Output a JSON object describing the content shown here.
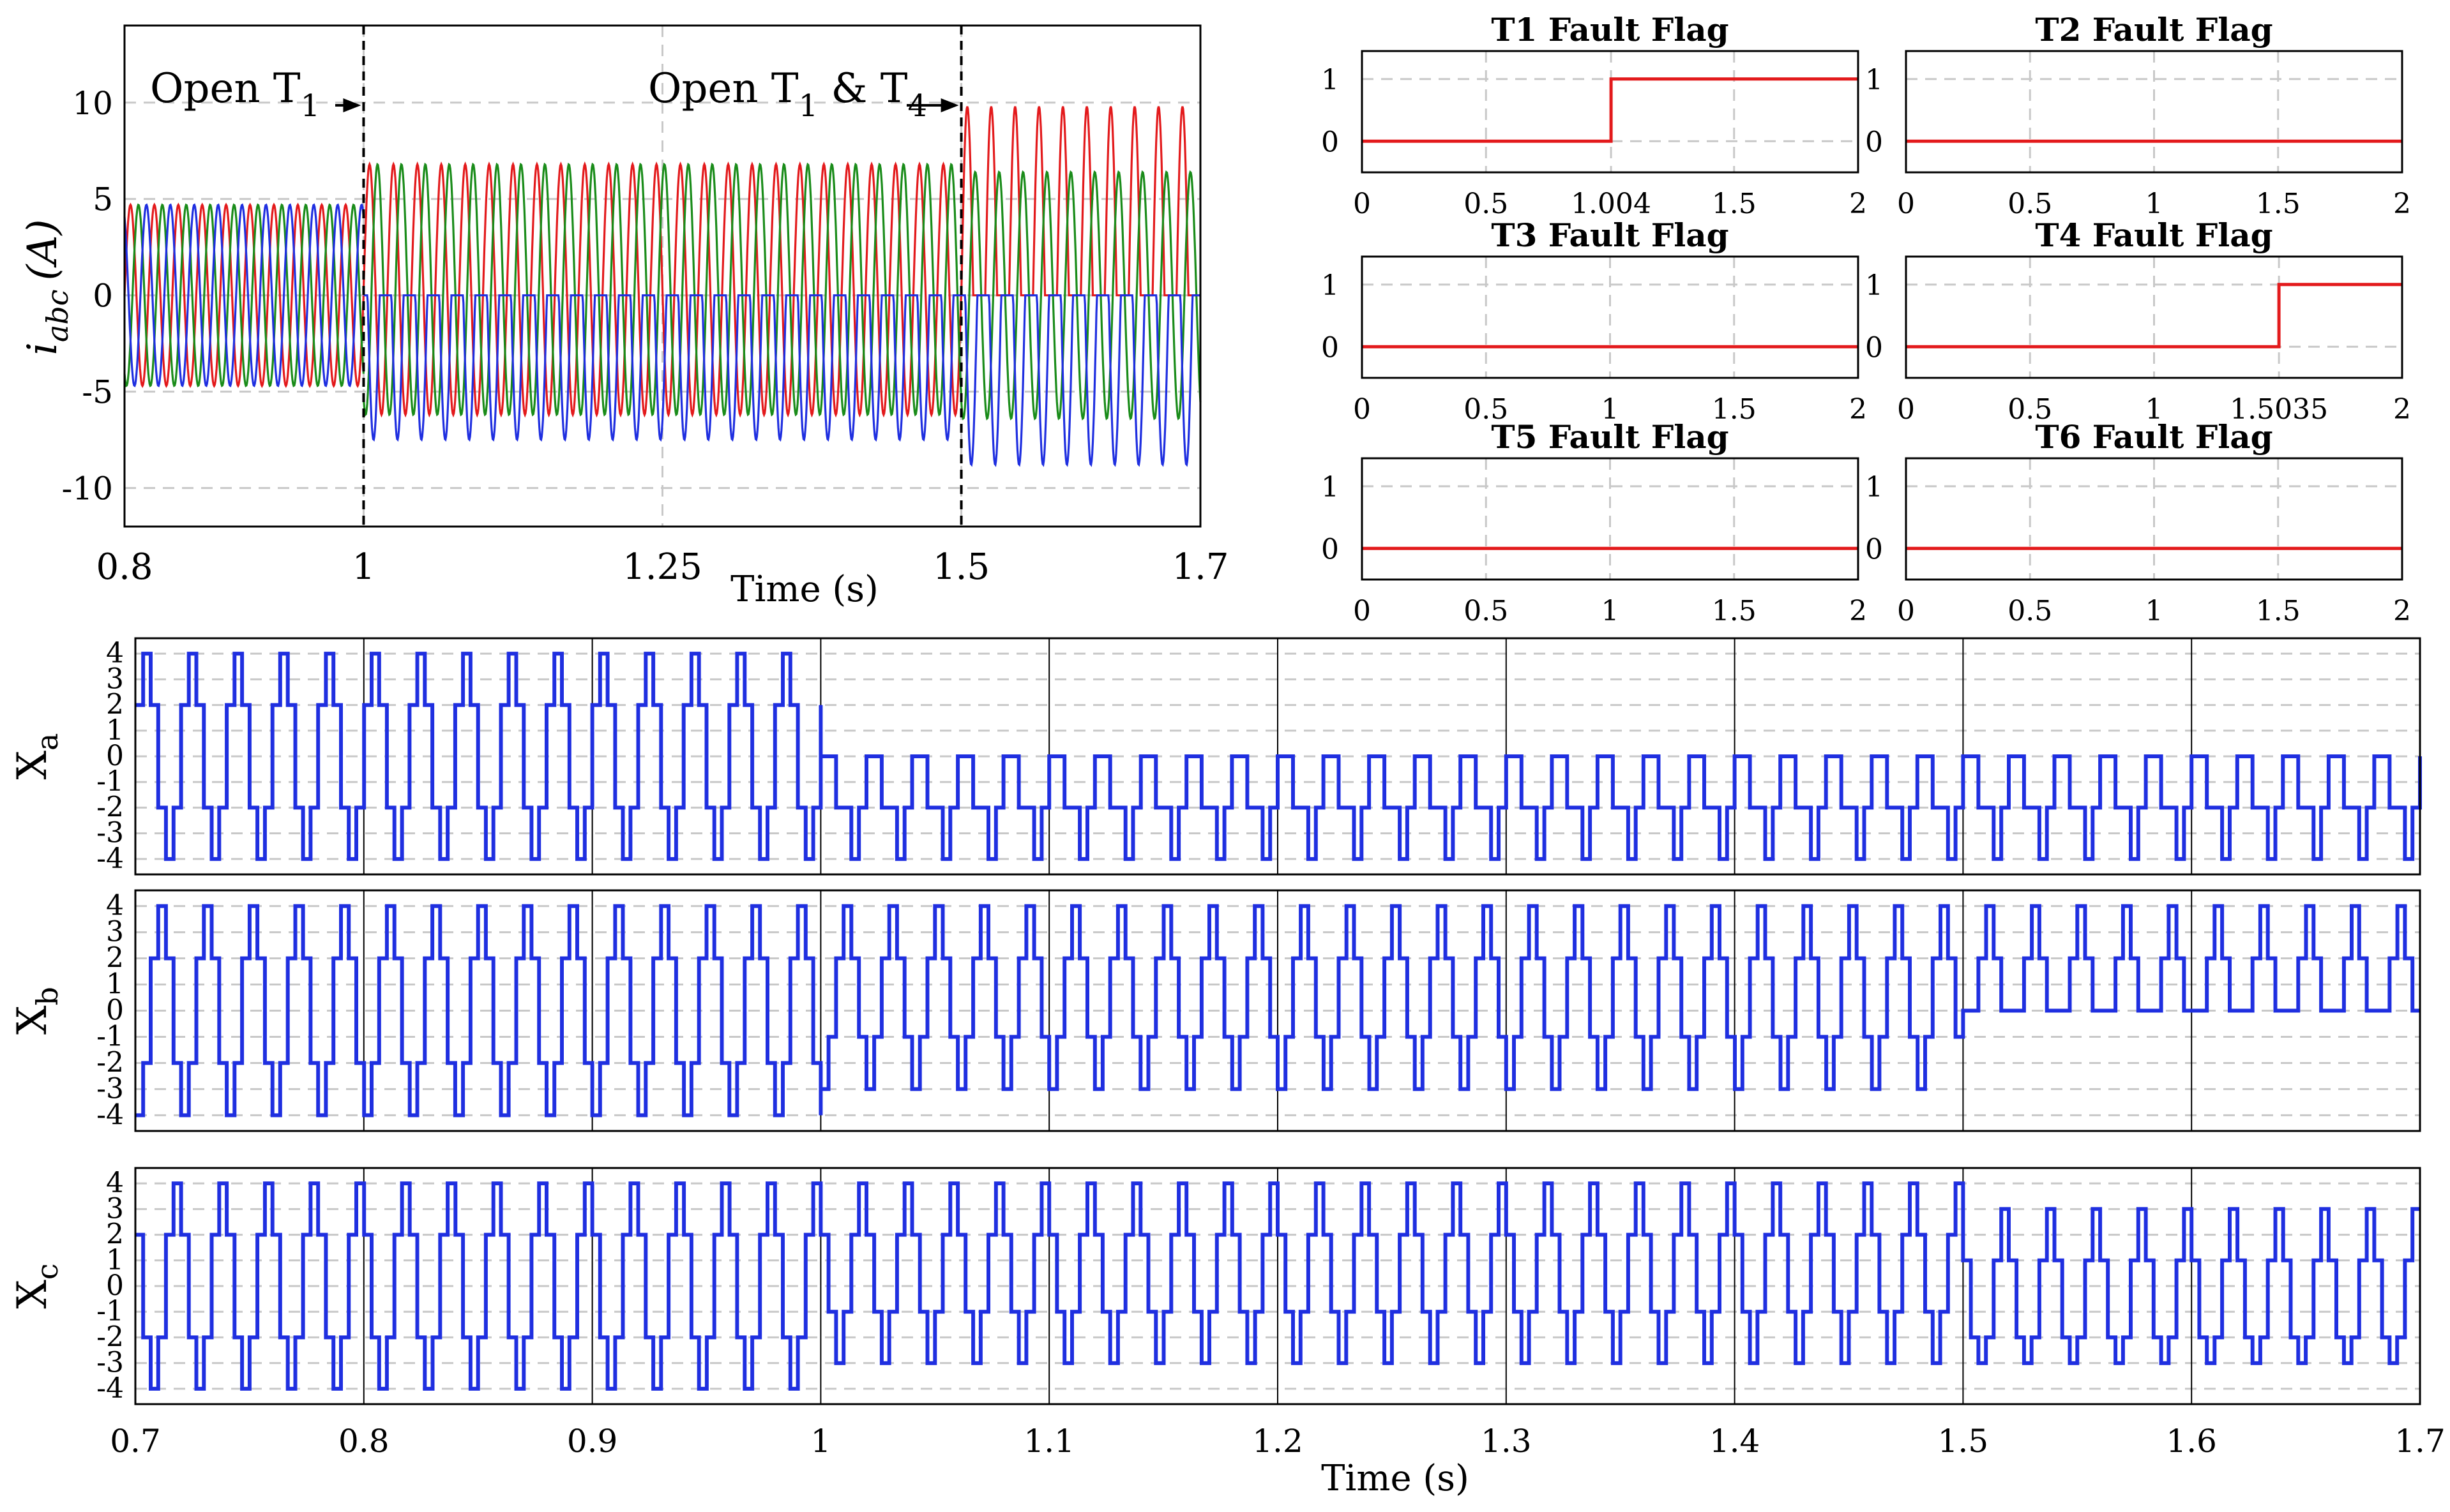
{
  "chart_data": [
    {
      "id": "currents",
      "type": "line",
      "xlabel": "Time (s)",
      "ylabel_main": "i",
      "ylabel_sub": "abc",
      "ylabel_unit": "(A)",
      "xlim": [
        0.8,
        1.7
      ],
      "ylim": [
        -12,
        14
      ],
      "xticks": [
        0.8,
        1.0,
        1.25,
        1.5,
        1.7
      ],
      "xtick_labels": [
        "0.8",
        "1",
        "1.25",
        "1.5",
        "1.7"
      ],
      "yticks": [
        10,
        5,
        0,
        -5,
        -10
      ],
      "ytick_labels": [
        "10",
        "5",
        "0",
        "-5",
        "-10"
      ],
      "grid": true,
      "fault_lines": [
        1.0,
        1.5
      ],
      "annotations": [
        {
          "text": "Open T",
          "sub": "1",
          "suffix": "",
          "x": 1.0
        },
        {
          "text": "Open T",
          "sub": "1",
          "suffix": " & T",
          "sub2": "4",
          "x": 1.5
        }
      ],
      "series": [
        {
          "color": "#e31a1c",
          "phase_deg": 0,
          "segments": [
            {
              "t": [
                0.8,
                1.0
              ],
              "mode": "sine",
              "amp": 4.7
            },
            {
              "t": [
                1.0,
                1.5
              ],
              "mode": "sine",
              "amp": 6.5,
              "offset": 0.3
            },
            {
              "t": [
                1.5,
                1.7
              ],
              "mode": "halfpos",
              "amp": 9.8
            }
          ]
        },
        {
          "color": "#1a8c1a",
          "phase_deg": -120,
          "segments": [
            {
              "t": [
                0.8,
                1.0
              ],
              "mode": "sine",
              "amp": 4.7
            },
            {
              "t": [
                1.0,
                1.5
              ],
              "mode": "sine",
              "amp": 6.5,
              "offset": 0.3
            },
            {
              "t": [
                1.5,
                1.7
              ],
              "mode": "sine",
              "amp": 6.4
            }
          ]
        },
        {
          "color": "#1f2fe0",
          "phase_deg": 120,
          "segments": [
            {
              "t": [
                0.8,
                1.0
              ],
              "mode": "sine",
              "amp": 4.7
            },
            {
              "t": [
                1.0,
                1.5
              ],
              "mode": "halfneg",
              "amp": 7.5
            },
            {
              "t": [
                1.5,
                1.7
              ],
              "mode": "halfneg",
              "amp": 8.8
            }
          ]
        }
      ],
      "frequency_hz": 50
    },
    {
      "id": "fault_flags",
      "type": "line",
      "xlim": [
        0,
        2
      ],
      "ylim": [
        -0.5,
        1.45
      ],
      "yticks": [
        0,
        1
      ],
      "ytick_labels": [
        "0",
        "1"
      ],
      "color": "#e31a1c",
      "panels": [
        {
          "title": "T1 Fault Flag",
          "step_at": 1.004,
          "xticks": [
            0,
            0.5,
            1.004,
            1.5,
            2
          ],
          "xtick_labels": [
            "0",
            "0.5",
            "1.004",
            "1.5",
            "2"
          ]
        },
        {
          "title": "T2 Fault Flag",
          "step_at": null,
          "xticks": [
            0,
            0.5,
            1,
            1.5,
            2
          ],
          "xtick_labels": [
            "0",
            "0.5",
            "1",
            "1.5",
            "2"
          ]
        },
        {
          "title": "T3 Fault Flag",
          "step_at": null,
          "xticks": [
            0,
            0.5,
            1,
            1.5,
            2
          ],
          "xtick_labels": [
            "0",
            "0.5",
            "1",
            "1.5",
            "2"
          ]
        },
        {
          "title": "T4 Fault Flag",
          "step_at": 1.5035,
          "xticks": [
            0,
            0.5,
            1,
            1.5035,
            2
          ],
          "xtick_labels": [
            "0",
            "0.5",
            "1",
            "1.5035",
            "2"
          ]
        },
        {
          "title": "T5 Fault Flag",
          "step_at": null,
          "xticks": [
            0,
            0.5,
            1,
            1.5,
            2
          ],
          "xtick_labels": [
            "0",
            "0.5",
            "1",
            "1.5",
            "2"
          ]
        },
        {
          "title": "T6 Fault Flag",
          "step_at": null,
          "xticks": [
            0,
            0.5,
            1,
            1.5,
            2
          ],
          "xtick_labels": [
            "0",
            "0.5",
            "1",
            "1.5",
            "2"
          ]
        }
      ]
    },
    {
      "id": "states",
      "type": "line",
      "xlabel": "Time (s)",
      "xlim": [
        0.7,
        1.7
      ],
      "xticks": [
        0.7,
        0.8,
        0.9,
        1.0,
        1.1,
        1.2,
        1.3,
        1.4,
        1.5,
        1.6,
        1.7
      ],
      "xtick_labels": [
        "0.7",
        "0.8",
        "0.9",
        "1",
        "1.1",
        "1.2",
        "1.3",
        "1.4",
        "1.5",
        "1.6",
        "1.7"
      ],
      "ylim": [
        -4.6,
        4.6
      ],
      "yticks": [
        4,
        3,
        2,
        1,
        0,
        -1,
        -2,
        -3,
        -4
      ],
      "ytick_labels": [
        "4",
        "3",
        "2",
        "1",
        "0",
        "-1",
        "-2",
        "-3",
        "-4"
      ],
      "color": "#1f2fe0",
      "frequency_hz": 50,
      "panels": [
        {
          "name": "X",
          "sub": "a",
          "phase_deg": 0,
          "segments": [
            {
              "t": [
                0.7,
                1.0
              ],
              "levels": [
                2,
                4,
                2,
                -2,
                -4,
                -2
              ]
            },
            {
              "t": [
                1.0,
                1.7
              ],
              "levels": [
                0,
                0,
                -2,
                -2,
                -4,
                -2
              ]
            }
          ]
        },
        {
          "name": "X",
          "sub": "b",
          "phase_deg": -120,
          "segments": [
            {
              "t": [
                0.7,
                1.0
              ],
              "levels": [
                2,
                4,
                2,
                -2,
                -4,
                -2
              ]
            },
            {
              "t": [
                1.0,
                1.5
              ],
              "levels": [
                2,
                4,
                2,
                -1,
                -3,
                -1
              ]
            },
            {
              "t": [
                1.5,
                1.7
              ],
              "levels": [
                2,
                4,
                2,
                0,
                0,
                0
              ]
            }
          ]
        },
        {
          "name": "X",
          "sub": "c",
          "phase_deg": 120,
          "segments": [
            {
              "t": [
                0.7,
                1.0
              ],
              "levels": [
                2,
                4,
                2,
                -2,
                -4,
                -2
              ]
            },
            {
              "t": [
                1.0,
                1.5
              ],
              "levels": [
                2,
                4,
                2,
                -1,
                -3,
                -1
              ]
            },
            {
              "t": [
                1.5,
                1.7
              ],
              "levels": [
                1,
                3,
                1,
                -2,
                -3,
                -2
              ]
            }
          ]
        }
      ]
    }
  ]
}
